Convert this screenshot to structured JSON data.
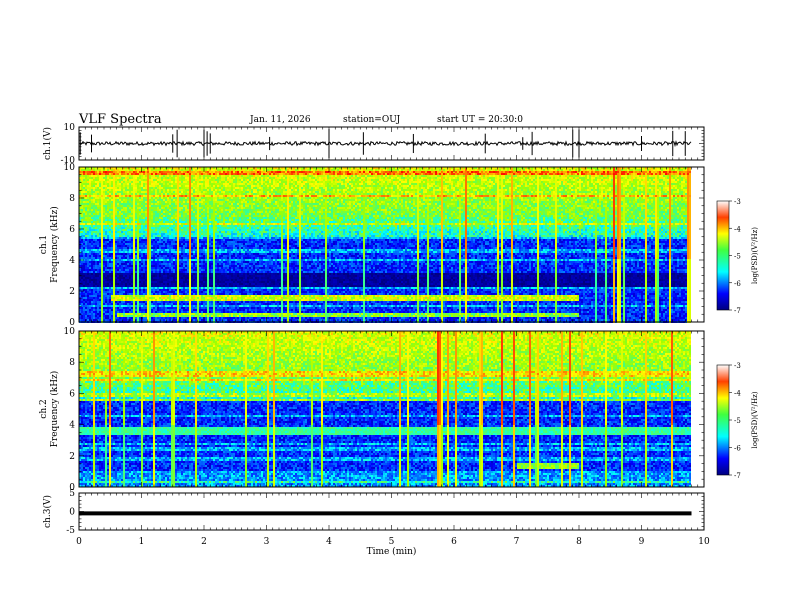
{
  "header": {
    "title": "VLF Spectra",
    "date": "Jan. 11, 2026",
    "station": "station=OUJ",
    "start_ut": "start UT =  20:30:0"
  },
  "colors": {
    "background": "#ffffff",
    "axis": "#000000",
    "colormap": [
      "#00007f",
      "#0000ff",
      "#0080ff",
      "#00ffff",
      "#40ff80",
      "#a0ff00",
      "#ffff00",
      "#ff8000",
      "#ff0000",
      "#800000"
    ]
  },
  "chart_data": [
    {
      "type": "line",
      "panel": "ch1-waveform",
      "ylabel": "ch.1(V)",
      "ylim": [
        -10,
        10
      ],
      "ytick_labels": [
        "10",
        "-10"
      ],
      "x_unit": "min",
      "xlim": [
        0,
        10
      ],
      "baseline_value": 0,
      "spikes_x": [
        0.02,
        0.2,
        1.5,
        1.57,
        2.0,
        2.05,
        2.1,
        3.05,
        4.0,
        4.55,
        5.35,
        6.5,
        7.1,
        7.25,
        7.9,
        8.0,
        9.0,
        9.5,
        9.7
      ],
      "note": "noisy waveform, amplitude approx ±1 V with short spikes"
    },
    {
      "type": "heatmap",
      "panel": "ch1-spectrogram",
      "ylabel": "ch.1\nFrequency (kHz)",
      "ylim": [
        0,
        10
      ],
      "ytick_labels": [
        "0",
        "2",
        "4",
        "6",
        "8",
        "10"
      ],
      "xlim": [
        0,
        10
      ],
      "colorbar": {
        "label": "log(PSD)(V²/Hz)",
        "range": [
          -7,
          -3
        ],
        "tick_labels": [
          "-3",
          "-4",
          "-5",
          "-6",
          "-7"
        ]
      },
      "features": [
        {
          "name": "chorus band",
          "freq_khz": [
            1.4,
            1.8
          ],
          "time_min": [
            0.5,
            8.0
          ],
          "level": -4
        },
        {
          "name": "lower band",
          "freq_khz": [
            0.3,
            0.6
          ],
          "time_min": [
            0.6,
            8.0
          ],
          "level": -4.5
        }
      ]
    },
    {
      "type": "heatmap",
      "panel": "ch2-spectrogram",
      "ylabel": "ch.2\nFrequency (kHz)",
      "ylim": [
        0,
        10
      ],
      "ytick_labels": [
        "0",
        "2",
        "4",
        "6",
        "8",
        "10"
      ],
      "xlim": [
        0,
        10
      ],
      "colorbar": {
        "label": "log(PSD)(V²/Hz)",
        "range": [
          -7,
          -3
        ],
        "tick_labels": [
          "-3",
          "-4",
          "-5",
          "-6",
          "-7"
        ]
      },
      "features": [
        {
          "name": "cyan band",
          "freq_khz": [
            3.3,
            3.9
          ],
          "time_min": [
            0,
            9.8
          ],
          "level": -5
        },
        {
          "name": "chorus band",
          "freq_khz": [
            1.2,
            1.6
          ],
          "time_min": [
            7.0,
            8.0
          ],
          "level": -4.5
        }
      ]
    },
    {
      "type": "line",
      "panel": "ch3-waveform",
      "ylabel": "ch.3(V)",
      "ylim": [
        -5,
        5
      ],
      "ytick_labels": [
        "5",
        "0",
        "-5"
      ],
      "xlabel": "Time (min)",
      "xlim": [
        0,
        10
      ],
      "xtick_labels": [
        "0",
        "1",
        "2",
        "3",
        "4",
        "5",
        "6",
        "7",
        "8",
        "9",
        "10"
      ],
      "constant_value": -0.5,
      "data_end_min": 9.8
    }
  ]
}
